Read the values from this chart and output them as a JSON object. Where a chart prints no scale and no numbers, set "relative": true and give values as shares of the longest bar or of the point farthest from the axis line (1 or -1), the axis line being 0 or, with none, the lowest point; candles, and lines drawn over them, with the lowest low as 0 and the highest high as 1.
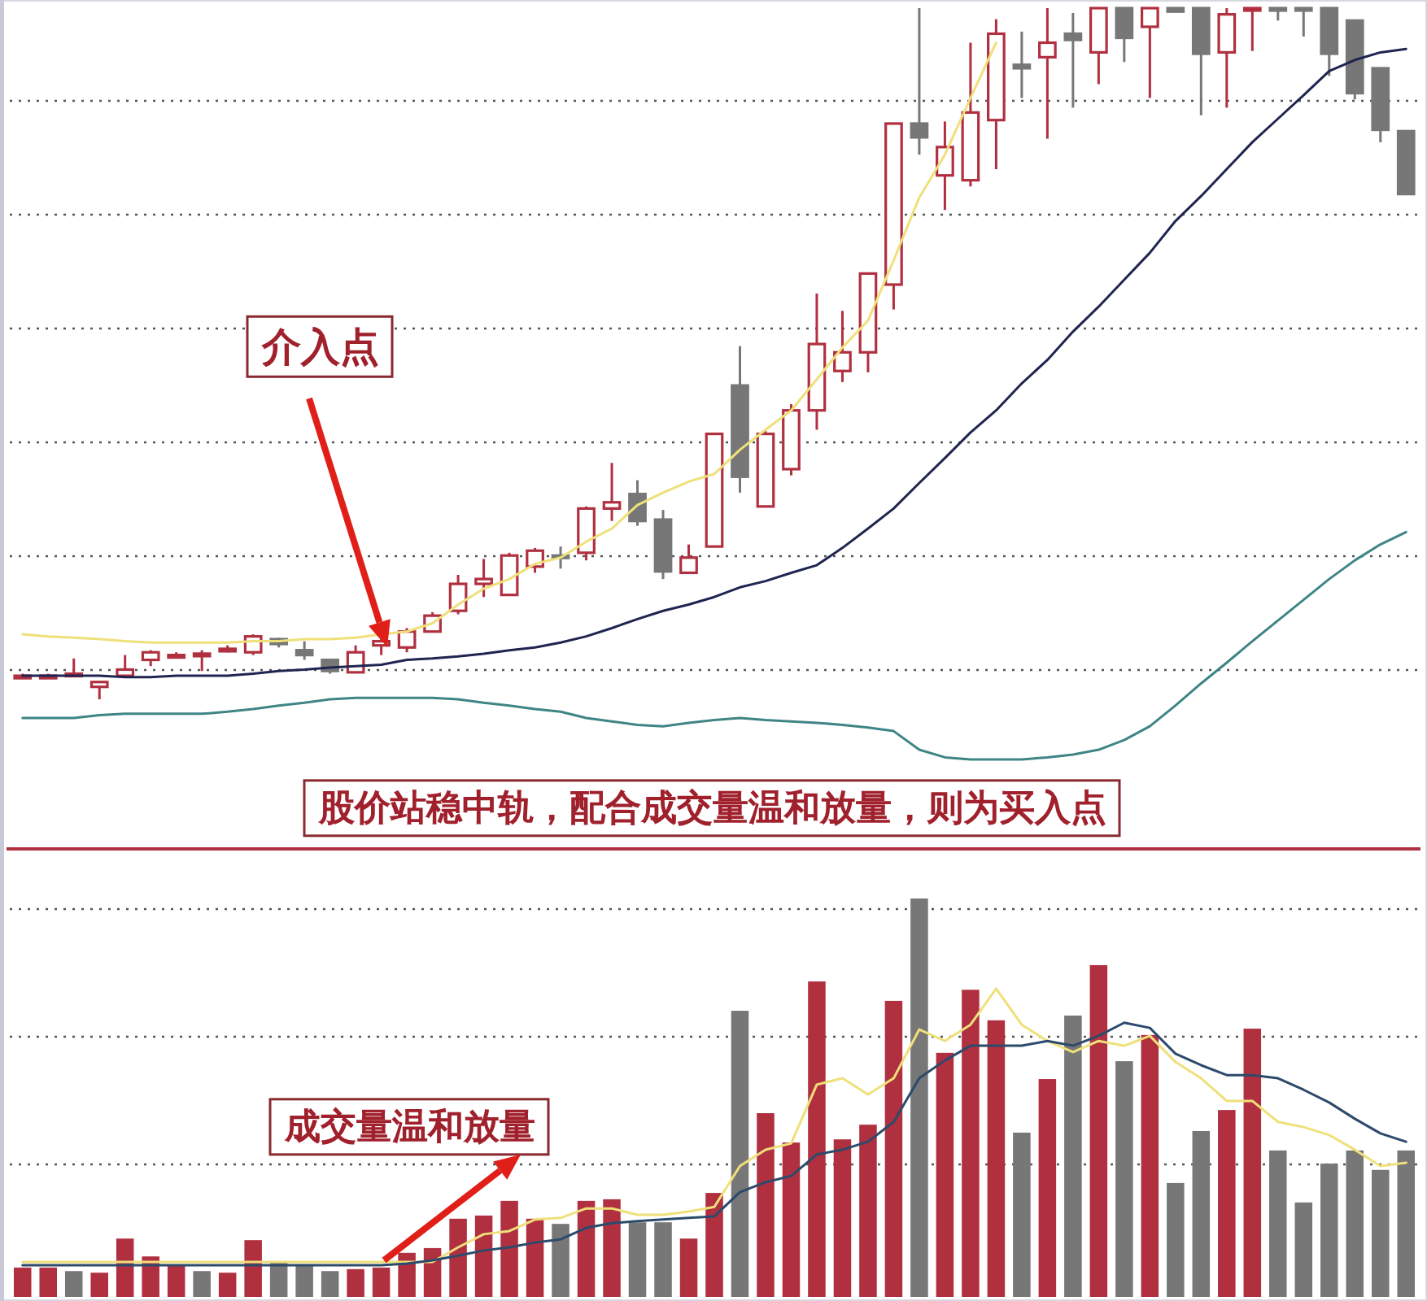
{
  "chart_data": [
    {
      "type": "candlestick",
      "relative": true,
      "grid": true,
      "categories": [
        null,
        null,
        null,
        null,
        null,
        null,
        null,
        null,
        null,
        null,
        null,
        null,
        null,
        null,
        null,
        null,
        null,
        null,
        null,
        null,
        null,
        null,
        null,
        null,
        null,
        null,
        null,
        null,
        null,
        null,
        null,
        null,
        null,
        null,
        null,
        null,
        null,
        null,
        null,
        null,
        null,
        null,
        null,
        null,
        null,
        null,
        null,
        null,
        null,
        null,
        null,
        null,
        null,
        null,
        null
      ],
      "ohlc": [
        [
          0.034,
          0.037,
          0.03,
          0.034
        ],
        [
          0.034,
          0.037,
          0.03,
          0.034
        ],
        [
          0.037,
          0.059,
          0.034,
          0.037
        ],
        [
          0.018,
          0.025,
          0,
          0.025
        ],
        [
          0.034,
          0.064,
          0.034,
          0.043
        ],
        [
          0.057,
          0.071,
          0.048,
          0.068
        ],
        [
          0.064,
          0.068,
          0.059,
          0.064
        ],
        [
          0.066,
          0.071,
          0.041,
          0.066
        ],
        [
          0.073,
          0.078,
          0.068,
          0.073
        ],
        [
          0.068,
          0.094,
          0.064,
          0.091
        ],
        [
          0.087,
          0.089,
          0.075,
          0.08
        ],
        [
          0.071,
          0.084,
          0.057,
          0.064
        ],
        [
          0.057,
          0.057,
          0.037,
          0.041
        ],
        [
          0.039,
          0.078,
          0.039,
          0.068
        ],
        [
          0.078,
          0.087,
          0.064,
          0.084
        ],
        [
          0.075,
          0.103,
          0.068,
          0.098
        ],
        [
          0.098,
          0.126,
          0.098,
          0.121
        ],
        [
          0.128,
          0.18,
          0.123,
          0.167
        ],
        [
          0.167,
          0.203,
          0.148,
          0.174
        ],
        [
          0.151,
          0.212,
          0.151,
          0.208
        ],
        [
          0.192,
          0.219,
          0.183,
          0.215
        ],
        [
          0.208,
          0.221,
          0.189,
          0.205
        ],
        [
          0.212,
          0.279,
          0.201,
          0.276
        ],
        [
          0.276,
          0.342,
          0.258,
          0.285
        ],
        [
          0.297,
          0.317,
          0.251,
          0.258
        ],
        [
          0.26,
          0.274,
          0.174,
          0.185
        ],
        [
          0.183,
          0.224,
          0.183,
          0.205
        ],
        [
          0.221,
          0.384,
          0.221,
          0.384
        ],
        [
          0.454,
          0.511,
          0.299,
          0.322
        ],
        [
          0.279,
          0.388,
          0.279,
          0.384
        ],
        [
          0.333,
          0.427,
          0.324,
          0.418
        ],
        [
          0.418,
          0.587,
          0.39,
          0.514
        ],
        [
          0.475,
          0.562,
          0.459,
          0.502
        ],
        [
          0.502,
          0.616,
          0.473,
          0.616
        ],
        [
          0.6,
          0.833,
          0.564,
          0.833
        ],
        [
          0.833,
          1,
          0.788,
          0.813
        ],
        [
          0.758,
          0.836,
          0.708,
          0.799
        ],
        [
          0.751,
          0.95,
          0.742,
          0.849
        ],
        [
          0.838,
          0.984,
          0.767,
          0.963
        ],
        [
          0.918,
          0.966,
          0.87,
          0.913
        ],
        [
          0.929,
          1,
          0.811,
          0.95
        ],
        [
          0.963,
          0.993,
          0.856,
          0.954
        ],
        [
          0.936,
          1,
          0.89,
          1
        ],
        [
          1,
          1,
          0.922,
          0.957
        ],
        [
          0.973,
          1,
          0.87,
          1
        ],
        [
          1,
          1,
          0.995,
          0.995
        ],
        [
          1,
          1,
          0.845,
          0.934
        ],
        [
          0.936,
          1,
          0.856,
          0.991
        ],
        [
          0.998,
          1,
          0.938,
          1
        ],
        [
          1,
          1,
          0.982,
          0.998
        ],
        [
          1,
          1,
          0.959,
          0.998
        ],
        [
          1,
          1,
          0.902,
          0.934
        ],
        [
          0.982,
          0.982,
          0.868,
          0.877
        ],
        [
          0.913,
          0.913,
          0.806,
          0.824
        ],
        [
          0.822,
          0.822,
          0.731,
          0.731
        ]
      ],
      "series": [
        {
          "type": "line",
          "color": "#efe07a",
          "values": [
            0.094,
            0.091,
            0.089,
            0.087,
            0.084,
            0.082,
            0.082,
            0.082,
            0.082,
            0.084,
            0.084,
            0.087,
            0.087,
            0.089,
            0.094,
            0.098,
            0.11,
            0.137,
            0.16,
            0.174,
            0.196,
            0.205,
            0.228,
            0.247,
            0.281,
            0.299,
            0.315,
            0.326,
            0.361,
            0.39,
            0.418,
            0.463,
            0.509,
            0.548,
            0.635,
            0.726,
            0.788,
            0.87,
            0.95,
            null,
            null,
            null,
            null,
            null,
            null,
            null,
            null,
            null,
            null,
            null,
            null,
            null,
            null,
            null,
            null
          ]
        },
        {
          "type": "line",
          "color": "#1f2550",
          "values": [
            0.034,
            0.034,
            0.034,
            0.034,
            0.032,
            0.032,
            0.034,
            0.034,
            0.034,
            0.037,
            0.041,
            0.043,
            0.046,
            0.048,
            0.05,
            0.057,
            0.059,
            0.062,
            0.066,
            0.071,
            0.075,
            0.082,
            0.091,
            0.103,
            0.116,
            0.128,
            0.137,
            0.148,
            0.162,
            0.171,
            0.183,
            0.194,
            0.219,
            0.247,
            0.276,
            0.313,
            0.349,
            0.386,
            0.418,
            0.457,
            0.491,
            0.532,
            0.568,
            0.607,
            0.646,
            0.692,
            0.728,
            0.767,
            0.806,
            0.84,
            0.874,
            0.909,
            0.925,
            0.936,
            0.941
          ]
        },
        {
          "type": "line",
          "color": "#3f8585",
          "values": [
            -0.027,
            -0.027,
            -0.027,
            -0.023,
            -0.021,
            -0.021,
            -0.021,
            -0.021,
            -0.018,
            -0.014,
            -0.009,
            -0.005,
            0,
            0.002,
            0.002,
            0.002,
            0.002,
            0,
            -0.005,
            -0.009,
            -0.014,
            -0.018,
            -0.027,
            -0.032,
            -0.037,
            -0.039,
            -0.034,
            -0.03,
            -0.027,
            -0.03,
            -0.032,
            -0.034,
            -0.037,
            -0.041,
            -0.046,
            -0.073,
            -0.084,
            -0.087,
            -0.087,
            -0.087,
            -0.084,
            -0.08,
            -0.073,
            -0.059,
            -0.039,
            -0.009,
            0.023,
            0.053,
            0.084,
            0.114,
            0.144,
            0.174,
            0.201,
            0.224,
            0.242
          ]
        }
      ],
      "annotations": [
        "介入点",
        "股价站稳中轨，配合成交量温和放量，则为买入点"
      ]
    },
    {
      "type": "bar",
      "relative": true,
      "grid": true,
      "categories": [
        null,
        null,
        null,
        null,
        null,
        null,
        null,
        null,
        null,
        null,
        null,
        null,
        null,
        null,
        null,
        null,
        null,
        null,
        null,
        null,
        null,
        null,
        null,
        null,
        null,
        null,
        null,
        null,
        null,
        null,
        null,
        null,
        null,
        null,
        null,
        null,
        null,
        null,
        null,
        null,
        null,
        null,
        null,
        null,
        null,
        null,
        null,
        null,
        null,
        null,
        null,
        null,
        null,
        null,
        null
      ],
      "series": [
        {
          "type": "bar",
          "values": [
            0.07,
            0.07,
            0.061,
            0.057,
            0.143,
            0.098,
            0.074,
            0.061,
            0.057,
            0.139,
            0.086,
            0.078,
            0.061,
            0.066,
            0.07,
            0.107,
            0.119,
            0.193,
            0.201,
            0.238,
            0.193,
            0.18,
            0.238,
            0.242,
            0.184,
            0.184,
            0.143,
            0.258,
            0.717,
            0.459,
            0.385,
            0.791,
            0.393,
            0.43,
            0.742,
            1,
            0.611,
            0.77,
            0.693,
            0.41,
            0.545,
            0.705,
            0.832,
            0.59,
            0.656,
            0.283,
            0.414,
            0.467,
            0.672,
            0.365,
            0.234,
            0.332,
            0.365,
            0.316,
            0.365
          ],
          "colors": [
            "#b03040",
            "#b03040",
            "#777777",
            "#b03040",
            "#b03040",
            "#b03040",
            "#b03040",
            "#777777",
            "#b03040",
            "#b03040",
            "#777777",
            "#777777",
            "#777777",
            "#b03040",
            "#b03040",
            "#b03040",
            "#b03040",
            "#b03040",
            "#b03040",
            "#b03040",
            "#b03040",
            "#777777",
            "#b03040",
            "#b03040",
            "#777777",
            "#777777",
            "#b03040",
            "#b03040",
            "#777777",
            "#b03040",
            "#b03040",
            "#b03040",
            "#b03040",
            "#b03040",
            "#b03040",
            "#777777",
            "#b03040",
            "#b03040",
            "#b03040",
            "#777777",
            "#b03040",
            "#777777",
            "#b03040",
            "#777777",
            "#b03040",
            "#777777",
            "#777777",
            "#b03040",
            "#b03040",
            "#777777",
            "#777777",
            "#777777",
            "#777777",
            "#777777",
            "#777777"
          ]
        },
        {
          "type": "line",
          "color": "#efe07a",
          "values": [
            0.086,
            0.086,
            0.086,
            0.086,
            0.086,
            0.086,
            0.086,
            0.086,
            0.086,
            0.086,
            0.086,
            0.086,
            0.086,
            0.086,
            0.086,
            0.086,
            0.086,
            0.123,
            0.156,
            0.164,
            0.193,
            0.197,
            0.221,
            0.221,
            0.205,
            0.205,
            0.213,
            0.225,
            0.328,
            0.369,
            0.385,
            0.533,
            0.549,
            0.508,
            0.549,
            0.672,
            0.643,
            0.684,
            0.775,
            0.684,
            0.643,
            0.615,
            0.643,
            0.631,
            0.656,
            0.59,
            0.549,
            0.492,
            0.492,
            0.439,
            0.426,
            0.406,
            0.369,
            0.328,
            0.336
          ]
        },
        {
          "type": "line",
          "color": "#2c4a6b",
          "values": [
            0.078,
            0.078,
            0.078,
            0.078,
            0.078,
            0.078,
            0.078,
            0.078,
            0.078,
            0.078,
            0.078,
            0.078,
            0.078,
            0.078,
            0.078,
            0.082,
            0.09,
            0.102,
            0.115,
            0.123,
            0.135,
            0.143,
            0.172,
            0.184,
            0.189,
            0.193,
            0.197,
            0.201,
            0.262,
            0.287,
            0.303,
            0.357,
            0.369,
            0.389,
            0.439,
            0.549,
            0.594,
            0.631,
            0.631,
            0.631,
            0.643,
            0.631,
            0.656,
            0.689,
            0.676,
            0.611,
            0.582,
            0.557,
            0.557,
            0.549,
            0.52,
            0.488,
            0.447,
            0.41,
            0.389
          ]
        }
      ],
      "annotations": [
        "成交量温和放量"
      ]
    }
  ]
}
